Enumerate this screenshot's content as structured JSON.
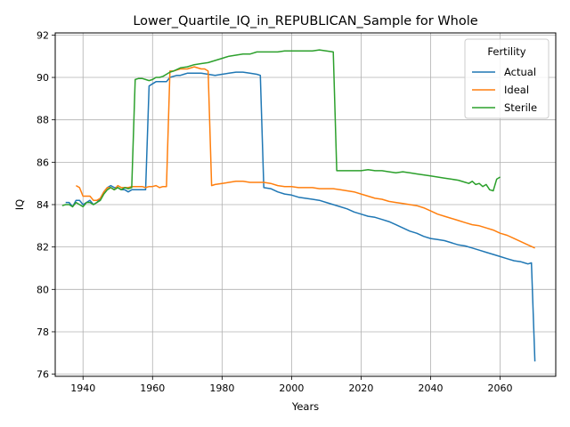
{
  "chart_data": {
    "type": "line",
    "title": "Lower_Quartile_IQ_in_REPUBLICAN_Sample for Whole",
    "xlabel": "Years",
    "ylabel": "IQ",
    "xlim": [
      1932,
      2076
    ],
    "ylim": [
      75.9,
      92.1
    ],
    "xticks": [
      1940,
      1960,
      1980,
      2000,
      2020,
      2040,
      2060
    ],
    "yticks": [
      76,
      78,
      80,
      82,
      84,
      86,
      88,
      90,
      92
    ],
    "grid": true,
    "legend": {
      "title": "Fertility",
      "position": "top-right"
    },
    "series": [
      {
        "name": "Actual",
        "color": "#1f77b4",
        "points": [
          [
            1935,
            84.1
          ],
          [
            1936,
            84.1
          ],
          [
            1937,
            83.9
          ],
          [
            1938,
            84.2
          ],
          [
            1939,
            84.2
          ],
          [
            1940,
            84.0
          ],
          [
            1941,
            84.1
          ],
          [
            1942,
            84.2
          ],
          [
            1943,
            84.0
          ],
          [
            1944,
            84.1
          ],
          [
            1945,
            84.3
          ],
          [
            1946,
            84.6
          ],
          [
            1947,
            84.8
          ],
          [
            1948,
            84.9
          ],
          [
            1949,
            84.8
          ],
          [
            1950,
            84.8
          ],
          [
            1951,
            84.7
          ],
          [
            1952,
            84.7
          ],
          [
            1953,
            84.6
          ],
          [
            1954,
            84.7
          ],
          [
            1955,
            84.7
          ],
          [
            1956,
            84.7
          ],
          [
            1957,
            84.7
          ],
          [
            1958,
            84.7
          ],
          [
            1959,
            89.6
          ],
          [
            1960,
            89.7
          ],
          [
            1961,
            89.8
          ],
          [
            1962,
            89.8
          ],
          [
            1963,
            89.8
          ],
          [
            1964,
            89.8
          ],
          [
            1965,
            90.0
          ],
          [
            1966,
            90.05
          ],
          [
            1967,
            90.1
          ],
          [
            1968,
            90.1
          ],
          [
            1969,
            90.15
          ],
          [
            1970,
            90.2
          ],
          [
            1972,
            90.2
          ],
          [
            1974,
            90.2
          ],
          [
            1976,
            90.15
          ],
          [
            1978,
            90.1
          ],
          [
            1980,
            90.15
          ],
          [
            1982,
            90.2
          ],
          [
            1984,
            90.25
          ],
          [
            1986,
            90.25
          ],
          [
            1988,
            90.2
          ],
          [
            1990,
            90.15
          ],
          [
            1991,
            90.1
          ],
          [
            1992,
            84.8
          ],
          [
            1994,
            84.75
          ],
          [
            1996,
            84.6
          ],
          [
            1998,
            84.5
          ],
          [
            2000,
            84.45
          ],
          [
            2002,
            84.35
          ],
          [
            2004,
            84.3
          ],
          [
            2006,
            84.25
          ],
          [
            2008,
            84.2
          ],
          [
            2010,
            84.1
          ],
          [
            2012,
            84.0
          ],
          [
            2014,
            83.9
          ],
          [
            2016,
            83.8
          ],
          [
            2018,
            83.65
          ],
          [
            2020,
            83.55
          ],
          [
            2022,
            83.45
          ],
          [
            2024,
            83.4
          ],
          [
            2026,
            83.3
          ],
          [
            2028,
            83.2
          ],
          [
            2030,
            83.05
          ],
          [
            2032,
            82.9
          ],
          [
            2034,
            82.75
          ],
          [
            2036,
            82.65
          ],
          [
            2038,
            82.5
          ],
          [
            2040,
            82.4
          ],
          [
            2042,
            82.35
          ],
          [
            2044,
            82.3
          ],
          [
            2046,
            82.2
          ],
          [
            2048,
            82.1
          ],
          [
            2050,
            82.05
          ],
          [
            2052,
            81.95
          ],
          [
            2054,
            81.85
          ],
          [
            2056,
            81.75
          ],
          [
            2058,
            81.65
          ],
          [
            2060,
            81.55
          ],
          [
            2062,
            81.45
          ],
          [
            2064,
            81.35
          ],
          [
            2066,
            81.3
          ],
          [
            2067,
            81.25
          ],
          [
            2068,
            81.2
          ],
          [
            2069,
            81.25
          ],
          [
            2070,
            76.6
          ]
        ]
      },
      {
        "name": "Ideal",
        "color": "#ff7f0e",
        "points": [
          [
            1938,
            84.9
          ],
          [
            1939,
            84.8
          ],
          [
            1940,
            84.4
          ],
          [
            1941,
            84.4
          ],
          [
            1942,
            84.4
          ],
          [
            1943,
            84.2
          ],
          [
            1944,
            84.2
          ],
          [
            1945,
            84.3
          ],
          [
            1946,
            84.6
          ],
          [
            1947,
            84.8
          ],
          [
            1948,
            84.8
          ],
          [
            1949,
            84.7
          ],
          [
            1950,
            84.9
          ],
          [
            1951,
            84.8
          ],
          [
            1952,
            84.8
          ],
          [
            1953,
            84.8
          ],
          [
            1954,
            84.85
          ],
          [
            1955,
            84.85
          ],
          [
            1956,
            84.85
          ],
          [
            1957,
            84.85
          ],
          [
            1958,
            84.8
          ],
          [
            1959,
            84.85
          ],
          [
            1960,
            84.85
          ],
          [
            1961,
            84.9
          ],
          [
            1962,
            84.8
          ],
          [
            1963,
            84.85
          ],
          [
            1964,
            84.85
          ],
          [
            1965,
            90.3
          ],
          [
            1966,
            90.3
          ],
          [
            1967,
            90.35
          ],
          [
            1968,
            90.4
          ],
          [
            1970,
            90.4
          ],
          [
            1972,
            90.5
          ],
          [
            1974,
            90.4
          ],
          [
            1975,
            90.4
          ],
          [
            1976,
            90.3
          ],
          [
            1977,
            84.9
          ],
          [
            1978,
            84.95
          ],
          [
            1980,
            85.0
          ],
          [
            1982,
            85.05
          ],
          [
            1984,
            85.1
          ],
          [
            1986,
            85.1
          ],
          [
            1988,
            85.05
          ],
          [
            1990,
            85.05
          ],
          [
            1992,
            85.05
          ],
          [
            1994,
            85.0
          ],
          [
            1996,
            84.9
          ],
          [
            1998,
            84.85
          ],
          [
            2000,
            84.85
          ],
          [
            2002,
            84.8
          ],
          [
            2004,
            84.8
          ],
          [
            2006,
            84.8
          ],
          [
            2008,
            84.75
          ],
          [
            2010,
            84.75
          ],
          [
            2012,
            84.75
          ],
          [
            2014,
            84.7
          ],
          [
            2016,
            84.65
          ],
          [
            2018,
            84.6
          ],
          [
            2020,
            84.5
          ],
          [
            2022,
            84.4
          ],
          [
            2024,
            84.3
          ],
          [
            2026,
            84.25
          ],
          [
            2028,
            84.15
          ],
          [
            2030,
            84.1
          ],
          [
            2032,
            84.05
          ],
          [
            2034,
            84.0
          ],
          [
            2036,
            83.95
          ],
          [
            2038,
            83.85
          ],
          [
            2040,
            83.7
          ],
          [
            2042,
            83.55
          ],
          [
            2044,
            83.45
          ],
          [
            2046,
            83.35
          ],
          [
            2048,
            83.25
          ],
          [
            2050,
            83.15
          ],
          [
            2052,
            83.05
          ],
          [
            2054,
            83.0
          ],
          [
            2056,
            82.9
          ],
          [
            2058,
            82.8
          ],
          [
            2060,
            82.65
          ],
          [
            2062,
            82.55
          ],
          [
            2064,
            82.4
          ],
          [
            2066,
            82.25
          ],
          [
            2068,
            82.1
          ],
          [
            2070,
            81.95
          ]
        ]
      },
      {
        "name": "Sterile",
        "color": "#2ca02c",
        "points": [
          [
            1934,
            83.95
          ],
          [
            1935,
            84.0
          ],
          [
            1936,
            84.0
          ],
          [
            1937,
            83.9
          ],
          [
            1938,
            84.1
          ],
          [
            1939,
            84.0
          ],
          [
            1940,
            83.9
          ],
          [
            1941,
            84.1
          ],
          [
            1942,
            84.1
          ],
          [
            1943,
            84.0
          ],
          [
            1944,
            84.1
          ],
          [
            1945,
            84.2
          ],
          [
            1946,
            84.5
          ],
          [
            1947,
            84.7
          ],
          [
            1948,
            84.8
          ],
          [
            1949,
            84.7
          ],
          [
            1950,
            84.8
          ],
          [
            1951,
            84.7
          ],
          [
            1952,
            84.8
          ],
          [
            1953,
            84.75
          ],
          [
            1954,
            84.8
          ],
          [
            1955,
            89.9
          ],
          [
            1956,
            89.95
          ],
          [
            1957,
            89.95
          ],
          [
            1958,
            89.9
          ],
          [
            1959,
            89.85
          ],
          [
            1960,
            89.9
          ],
          [
            1961,
            90.0
          ],
          [
            1962,
            90.0
          ],
          [
            1963,
            90.05
          ],
          [
            1964,
            90.15
          ],
          [
            1965,
            90.25
          ],
          [
            1966,
            90.3
          ],
          [
            1968,
            90.45
          ],
          [
            1970,
            90.5
          ],
          [
            1972,
            90.6
          ],
          [
            1974,
            90.65
          ],
          [
            1976,
            90.7
          ],
          [
            1978,
            90.8
          ],
          [
            1980,
            90.9
          ],
          [
            1982,
            91.0
          ],
          [
            1984,
            91.05
          ],
          [
            1986,
            91.1
          ],
          [
            1988,
            91.1
          ],
          [
            1990,
            91.2
          ],
          [
            1992,
            91.2
          ],
          [
            1994,
            91.2
          ],
          [
            1996,
            91.2
          ],
          [
            1998,
            91.25
          ],
          [
            2000,
            91.25
          ],
          [
            2002,
            91.25
          ],
          [
            2004,
            91.25
          ],
          [
            2006,
            91.25
          ],
          [
            2008,
            91.3
          ],
          [
            2010,
            91.25
          ],
          [
            2012,
            91.2
          ],
          [
            2013,
            85.6
          ],
          [
            2014,
            85.6
          ],
          [
            2016,
            85.6
          ],
          [
            2018,
            85.6
          ],
          [
            2020,
            85.6
          ],
          [
            2022,
            85.65
          ],
          [
            2024,
            85.6
          ],
          [
            2026,
            85.6
          ],
          [
            2028,
            85.55
          ],
          [
            2030,
            85.5
          ],
          [
            2032,
            85.55
          ],
          [
            2034,
            85.5
          ],
          [
            2036,
            85.45
          ],
          [
            2038,
            85.4
          ],
          [
            2040,
            85.35
          ],
          [
            2042,
            85.3
          ],
          [
            2044,
            85.25
          ],
          [
            2046,
            85.2
          ],
          [
            2048,
            85.15
          ],
          [
            2050,
            85.05
          ],
          [
            2051,
            85.0
          ],
          [
            2052,
            85.1
          ],
          [
            2053,
            84.95
          ],
          [
            2054,
            85.0
          ],
          [
            2055,
            84.85
          ],
          [
            2056,
            84.95
          ],
          [
            2057,
            84.7
          ],
          [
            2058,
            84.65
          ],
          [
            2059,
            85.2
          ],
          [
            2060,
            85.3
          ]
        ]
      }
    ]
  }
}
